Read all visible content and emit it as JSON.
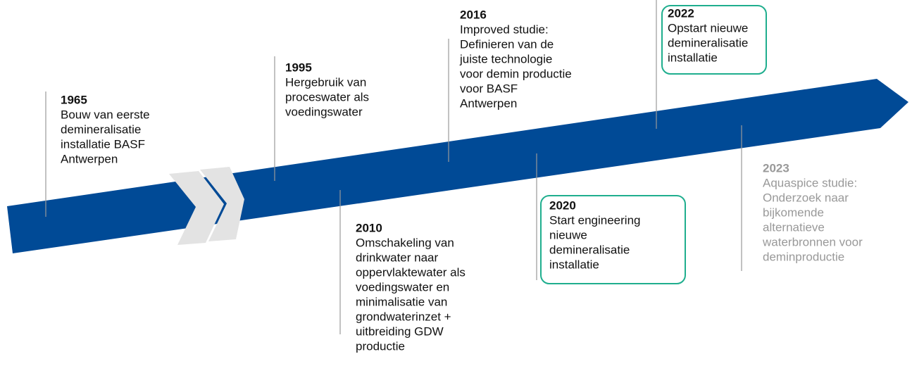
{
  "events": [
    {
      "year": "1965",
      "lines": [
        "Bouw van eerste",
        "demineralisatie",
        "installatie BASF",
        "Antwerpen"
      ]
    },
    {
      "year": "1995",
      "lines": [
        "Hergebruik van",
        "proceswater als",
        "voedingswater"
      ]
    },
    {
      "year": "2010",
      "lines": [
        "Omschakeling van",
        "drinkwater naar",
        "oppervlaktewater als",
        "voedingswater en",
        "minimalisatie van",
        "grondwaterinzet +",
        "uitbreiding GDW",
        "productie"
      ]
    },
    {
      "year": "2016",
      "lines": [
        "Improved studie:",
        "Definieren van de",
        "juiste technologie",
        "voor demin productie",
        "voor BASF",
        "Antwerpen"
      ]
    },
    {
      "year": "2020",
      "lines": [
        "Start engineering",
        "nieuwe",
        "demineralisatie",
        "installatie"
      ]
    },
    {
      "year": "2022",
      "lines": [
        "Opstart nieuwe",
        "demineralisatie",
        "installatie"
      ]
    },
    {
      "year": "2023",
      "lines": [
        "Aquaspice studie:",
        "Onderzoek naar",
        "bijkomende",
        "alternatieve",
        "waterbronnen voor",
        "deminproductie"
      ]
    }
  ]
}
